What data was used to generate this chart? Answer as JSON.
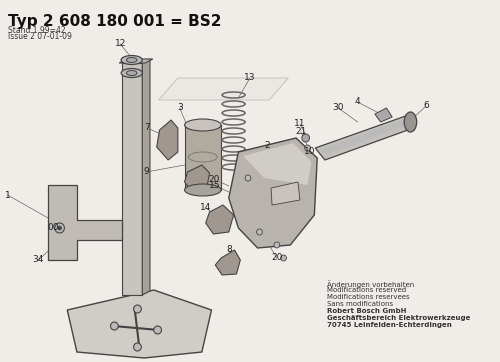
{
  "title": "Typ 2 608 180 001 = BS2",
  "stand_line1": "Stand 1.99=42",
  "stand_line2": "Issue 2 07-01-09",
  "footer_lines": [
    "Änderungen vorbehalten",
    "Modifications reserved",
    "Modifications reservees",
    "Sans modifications",
    "Robert Bosch GmbH",
    "Geschäftsbereich Elektrowerkzeuge",
    "70745 Leinfelden-Echterdingen"
  ],
  "bg_color": "#f0ede8",
  "line_color": "#555555",
  "part_color": "#888888",
  "part_dark": "#444444",
  "part_light": "#bbbbbb",
  "title_fontsize": 11,
  "stand_fontsize": 5.5,
  "footer_fontsize": 5,
  "label_fontsize": 6.5
}
